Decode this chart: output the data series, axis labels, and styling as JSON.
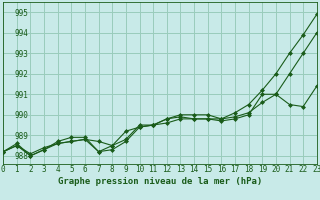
{
  "title": "Graphe pression niveau de la mer (hPa)",
  "background_color": "#c8eae8",
  "grid_color": "#99ccbb",
  "line_color": "#1a5c1a",
  "xlim": [
    0,
    23
  ],
  "ylim": [
    987.6,
    995.5
  ],
  "yticks": [
    988,
    989,
    990,
    991,
    992,
    993,
    994,
    995
  ],
  "xticks": [
    0,
    1,
    2,
    3,
    4,
    5,
    6,
    7,
    8,
    9,
    10,
    11,
    12,
    13,
    14,
    15,
    16,
    17,
    18,
    19,
    20,
    21,
    22,
    23
  ],
  "series1": [
    988.2,
    988.6,
    988.0,
    988.3,
    988.6,
    988.7,
    988.8,
    988.2,
    988.3,
    988.7,
    989.4,
    989.5,
    989.6,
    989.8,
    989.8,
    989.8,
    989.8,
    989.9,
    990.1,
    990.6,
    991.0,
    992.0,
    993.0,
    994.0
  ],
  "series2": [
    988.2,
    988.5,
    988.1,
    988.4,
    988.6,
    988.7,
    988.8,
    988.7,
    988.5,
    989.2,
    989.4,
    989.5,
    989.8,
    989.9,
    989.8,
    989.8,
    989.7,
    989.8,
    990.0,
    991.0,
    991.0,
    990.5,
    990.4,
    991.4
  ],
  "series3": [
    988.2,
    988.5,
    988.0,
    988.3,
    988.7,
    988.9,
    988.9,
    988.2,
    988.5,
    988.8,
    989.5,
    989.5,
    989.8,
    990.0,
    990.0,
    990.0,
    989.8,
    990.1,
    990.5,
    991.2,
    992.0,
    993.0,
    993.9,
    994.9
  ],
  "tick_fontsize": 5.5,
  "title_fontsize": 6.5
}
